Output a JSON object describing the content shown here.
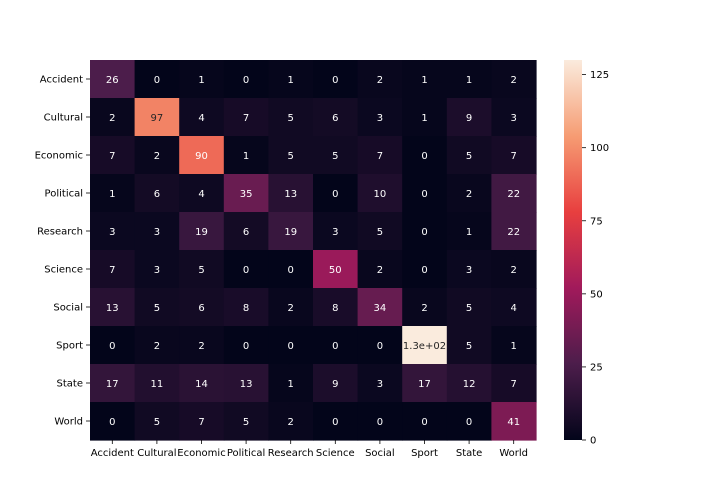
{
  "chart_data": {
    "type": "heatmap",
    "rows": [
      "Accident",
      "Cultural",
      "Economic",
      "Political",
      "Research",
      "Science",
      "Social",
      "Sport",
      "State",
      "World"
    ],
    "columns": [
      "Accident",
      "Cultural",
      "Economic",
      "Political",
      "Research",
      "Science",
      "Social",
      "Sport",
      "State",
      "World"
    ],
    "values": [
      [
        26,
        0,
        1,
        0,
        1,
        0,
        2,
        1,
        1,
        2
      ],
      [
        2,
        97,
        4,
        7,
        5,
        6,
        3,
        1,
        9,
        3
      ],
      [
        7,
        2,
        90,
        1,
        5,
        5,
        7,
        0,
        5,
        7
      ],
      [
        1,
        6,
        4,
        35,
        13,
        0,
        10,
        0,
        2,
        22
      ],
      [
        3,
        3,
        19,
        6,
        19,
        3,
        5,
        0,
        1,
        22
      ],
      [
        7,
        3,
        5,
        0,
        0,
        50,
        2,
        0,
        3,
        2
      ],
      [
        13,
        5,
        6,
        8,
        2,
        8,
        34,
        2,
        5,
        4
      ],
      [
        0,
        2,
        2,
        0,
        0,
        0,
        0,
        130,
        5,
        1
      ],
      [
        17,
        11,
        14,
        13,
        1,
        9,
        3,
        17,
        12,
        7
      ],
      [
        0,
        5,
        7,
        5,
        2,
        0,
        0,
        0,
        0,
        41
      ]
    ],
    "annotations": [
      [
        "26",
        "0",
        "1",
        "0",
        "1",
        "0",
        "2",
        "1",
        "1",
        "2"
      ],
      [
        "2",
        "97",
        "4",
        "7",
        "5",
        "6",
        "3",
        "1",
        "9",
        "3"
      ],
      [
        "7",
        "2",
        "90",
        "1",
        "5",
        "5",
        "7",
        "0",
        "5",
        "7"
      ],
      [
        "1",
        "6",
        "4",
        "35",
        "13",
        "0",
        "10",
        "0",
        "2",
        "22"
      ],
      [
        "3",
        "3",
        "19",
        "6",
        "19",
        "3",
        "5",
        "0",
        "1",
        "22"
      ],
      [
        "7",
        "3",
        "5",
        "0",
        "0",
        "50",
        "2",
        "0",
        "3",
        "2"
      ],
      [
        "13",
        "5",
        "6",
        "8",
        "2",
        "8",
        "34",
        "2",
        "5",
        "4"
      ],
      [
        "0",
        "2",
        "2",
        "0",
        "0",
        "0",
        "0",
        "1.3e+02",
        "5",
        "1"
      ],
      [
        "17",
        "11",
        "14",
        "13",
        "1",
        "9",
        "3",
        "17",
        "12",
        "7"
      ],
      [
        "0",
        "5",
        "7",
        "5",
        "2",
        "0",
        "0",
        "0",
        "0",
        "41"
      ]
    ],
    "colorbar": {
      "range": [
        0,
        130
      ],
      "ticks": [
        0,
        25,
        50,
        75,
        100,
        125
      ],
      "colormap": "rocket",
      "colormap_stops": [
        "#03051a",
        "#4c1d4b",
        "#a11a5b",
        "#e83f3f",
        "#f69c73",
        "#faebdd"
      ]
    },
    "title": "",
    "xlabel": "",
    "ylabel": ""
  }
}
